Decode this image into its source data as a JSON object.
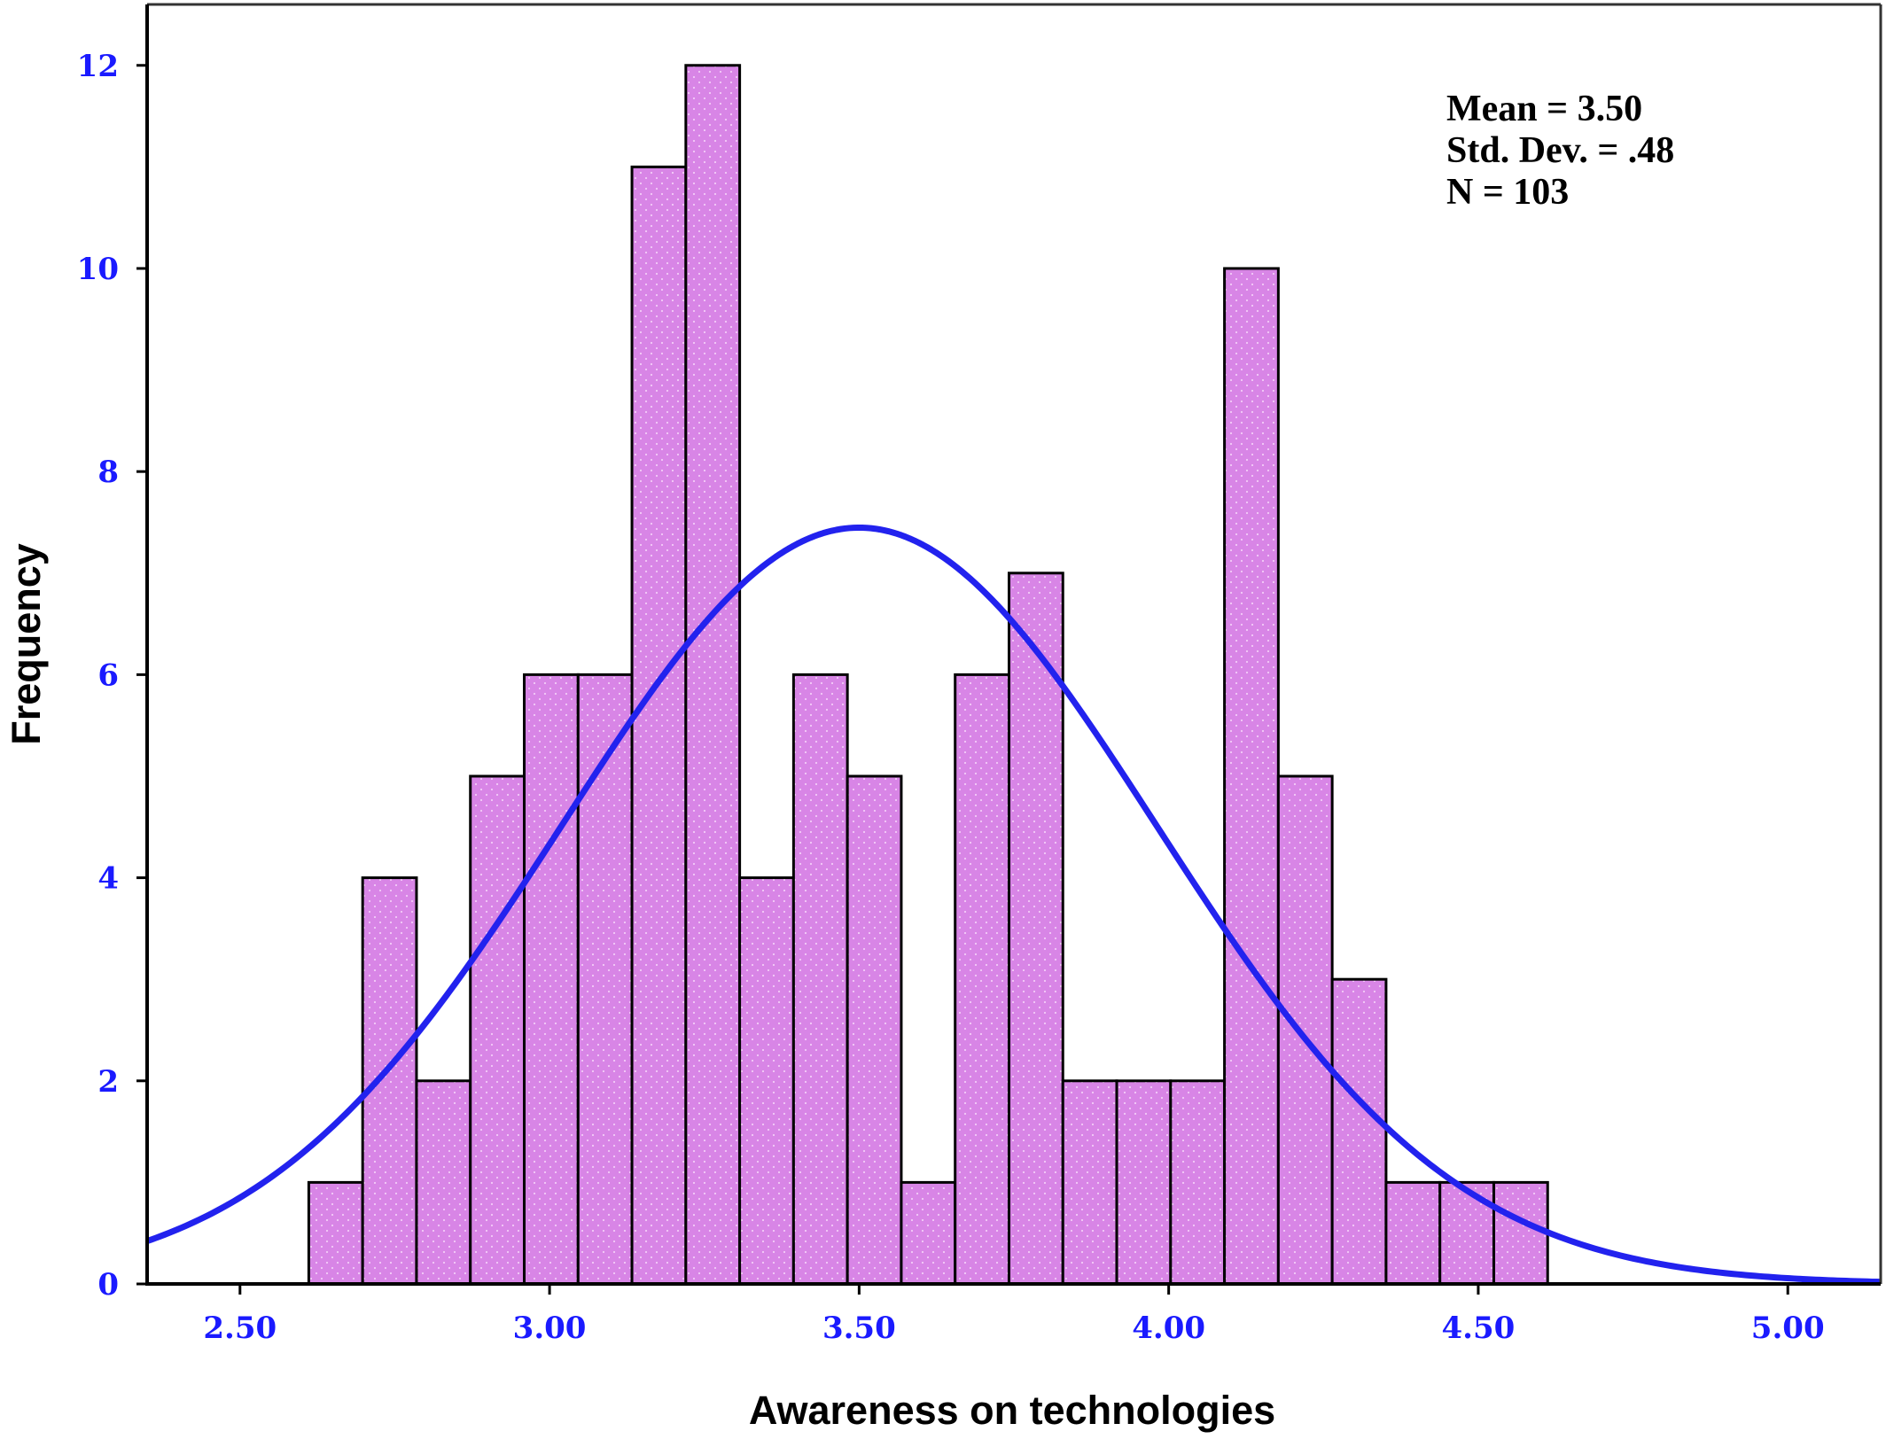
{
  "chart_data": {
    "type": "bar",
    "subtype": "histogram",
    "xlabel": "Awareness on technologies",
    "ylabel": "Frequency",
    "xlim": [
      2.35,
      5.15
    ],
    "ylim": [
      0,
      12.6
    ],
    "x_ticks": [
      "2.50",
      "3.00",
      "3.50",
      "4.00",
      "4.50",
      "5.00"
    ],
    "y_ticks": [
      "0",
      "2",
      "4",
      "6",
      "8",
      "10",
      "12"
    ],
    "bin_edges": [
      2.6111,
      2.6981,
      2.7851,
      2.8721,
      2.9591,
      3.0461,
      3.1331,
      3.2201,
      3.3071,
      3.3941,
      3.4811,
      3.5681,
      3.6551,
      3.7421,
      3.8291,
      3.9161,
      4.0031,
      4.0901,
      4.1771,
      4.2641,
      4.3511,
      4.4381,
      4.5251,
      4.6121
    ],
    "values": [
      1,
      4,
      2,
      5,
      6,
      6,
      11,
      12,
      4,
      6,
      5,
      1,
      6,
      7,
      2,
      2,
      2,
      10,
      5,
      3,
      1,
      1,
      1
    ],
    "normal_curve": {
      "mean": 3.5,
      "std": 0.48,
      "n": 103
    },
    "stats": [
      "Mean = 3.50",
      "Std. Dev. = .48",
      "N = 103"
    ],
    "colors": {
      "bar_fill": "#d885e6",
      "bar_stroke": "#000000",
      "curve": "#2222ee",
      "tick_labels": "#1a1aff",
      "axis_frame": "#000000"
    },
    "grid": false
  }
}
